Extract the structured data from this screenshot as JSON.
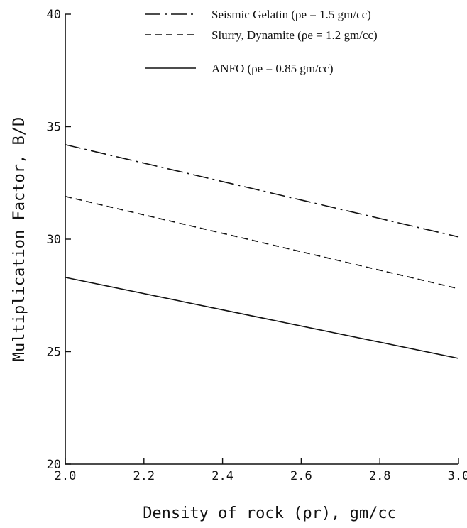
{
  "chart_data": {
    "type": "line",
    "title": "",
    "xlabel": "Density of rock (ρr), gm/cc",
    "ylabel": "Multiplication Factor, B/D",
    "xlim": [
      2.0,
      3.0
    ],
    "ylim": [
      20,
      40
    ],
    "x_ticks": [
      "2.0",
      "2.2",
      "2.4",
      "2.6",
      "2.8",
      "3.0"
    ],
    "y_ticks": [
      "20",
      "25",
      "30",
      "35",
      "40"
    ],
    "grid": false,
    "legend_position": "top-right",
    "series": [
      {
        "name": "Seismic Gelatin (ρe = 1.5 gm/cc)",
        "style": "dash-dot",
        "x": [
          2.0,
          3.0
        ],
        "y": [
          34.2,
          30.1
        ]
      },
      {
        "name": "Slurry, Dynamite (ρe = 1.2 gm/cc)",
        "style": "dashed",
        "x": [
          2.0,
          3.0
        ],
        "y": [
          31.9,
          27.8
        ]
      },
      {
        "name": "ANFO (ρe = 0.85 gm/cc)",
        "style": "solid",
        "x": [
          2.0,
          3.0
        ],
        "y": [
          28.3,
          24.7
        ]
      }
    ],
    "colors": {
      "line": "#111111",
      "background": "#ffffff"
    }
  }
}
